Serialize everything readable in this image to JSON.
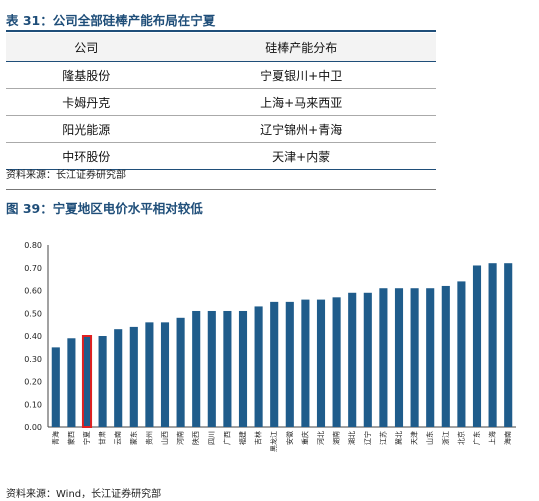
{
  "table": {
    "title": "表 31：公司全部硅棒产能布局在宁夏",
    "headers": [
      "公司",
      "硅棒产能分布"
    ],
    "rows": [
      [
        "隆基股份",
        "宁夏银川+中卫"
      ],
      [
        "卡姆丹克",
        "上海+马来西亚"
      ],
      [
        "阳光能源",
        "辽宁锦州+青海"
      ],
      [
        "中环股份",
        "天津+内蒙"
      ]
    ],
    "source": "资料来源：长江证券研究部"
  },
  "chart": {
    "title": "图 39：宁夏地区电价水平相对较低",
    "source": "资料来源：Wind，长江证券研究部"
  },
  "chart_data": {
    "type": "bar",
    "categories": [
      "青海",
      "蒙西",
      "宁夏",
      "甘肃",
      "云南",
      "蒙东",
      "贵州",
      "山西",
      "河南",
      "陕西",
      "四川",
      "广西",
      "福建",
      "吉林",
      "黑龙江",
      "安徽",
      "重庆",
      "河北",
      "湖南",
      "湖北",
      "辽宁",
      "江苏",
      "冀北",
      "天津",
      "山东",
      "浙江",
      "北京",
      "广东",
      "上海",
      "海南"
    ],
    "values": [
      0.35,
      0.39,
      0.4,
      0.4,
      0.43,
      0.44,
      0.46,
      0.46,
      0.48,
      0.51,
      0.51,
      0.51,
      0.51,
      0.53,
      0.55,
      0.55,
      0.56,
      0.56,
      0.57,
      0.59,
      0.59,
      0.61,
      0.61,
      0.61,
      0.61,
      0.62,
      0.64,
      0.71,
      0.72,
      0.72
    ],
    "highlight": "宁夏",
    "ylim": [
      0,
      0.8
    ],
    "yticks": [
      "0.00",
      "0.10",
      "0.20",
      "0.30",
      "0.40",
      "0.50",
      "0.60",
      "0.70",
      "0.80"
    ],
    "bar_color": "#1f5c8b",
    "highlight_color": "#e02020",
    "grid": false
  }
}
